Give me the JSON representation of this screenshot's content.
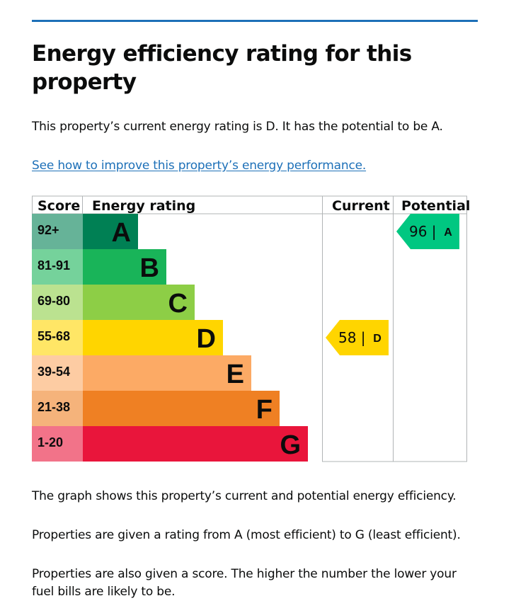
{
  "heading": "Energy efficiency rating for this property",
  "intro": "This property’s current energy rating is D. It has the potential to be A.",
  "improve_link": "See how to improve this property’s energy performance.",
  "para1": "The graph shows this property’s current and potential energy efficiency.",
  "para2": "Properties are given a rating from A (most efficient) to G (least efficient).",
  "para3": "Properties are also given a score. The higher the number the lower your fuel bills are likely to be.",
  "chart_data": {
    "type": "bar",
    "headers": {
      "score": "Score",
      "rating": "Energy rating",
      "current": "Current",
      "potential": "Potential"
    },
    "bands": [
      {
        "letter": "A",
        "range": "92+",
        "color": "#008054",
        "score_color": "#66b398"
      },
      {
        "letter": "B",
        "range": "81-91",
        "color": "#19b459",
        "score_color": "#75d29b"
      },
      {
        "letter": "C",
        "range": "69-80",
        "color": "#8dce46",
        "score_color": "#bbe290"
      },
      {
        "letter": "D",
        "range": "55-68",
        "color": "#ffd500",
        "score_color": "#ffe666"
      },
      {
        "letter": "E",
        "range": "39-54",
        "color": "#fcaa65",
        "score_color": "#fdcca3"
      },
      {
        "letter": "F",
        "range": "21-38",
        "color": "#ef8023",
        "score_color": "#f5b37b"
      },
      {
        "letter": "G",
        "range": "1-20",
        "color": "#e9153b",
        "score_color": "#f27389"
      }
    ],
    "current": {
      "score": 58,
      "letter": "D",
      "label": "58 |",
      "color": "#ffd500"
    },
    "potential": {
      "score": 96,
      "letter": "A",
      "label": "96 |",
      "color": "#00c781"
    }
  }
}
